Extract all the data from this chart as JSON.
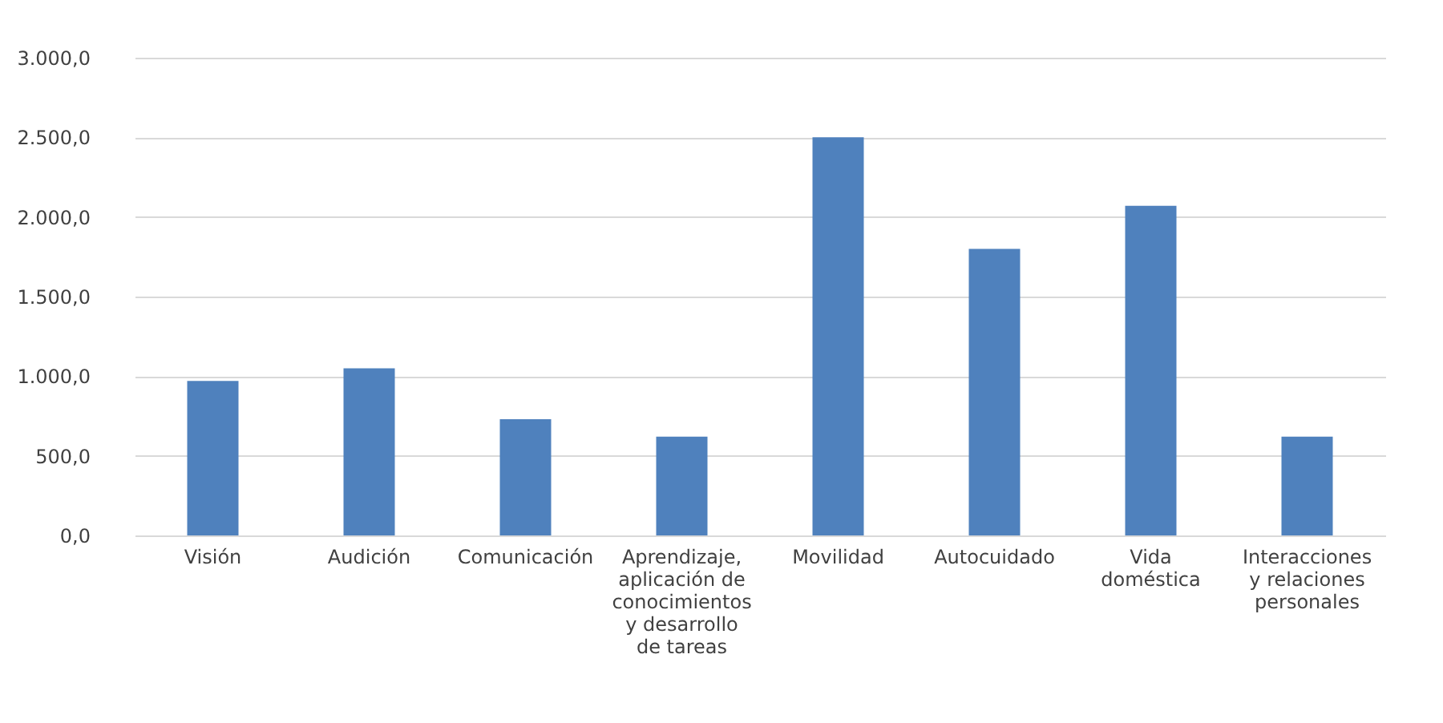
{
  "chart_data": {
    "type": "bar",
    "categories": [
      "Visión",
      "Audición",
      "Comunicación",
      "Aprendizaje, aplicación de conocimientos y desarrollo de tareas",
      "Movilidad",
      "Autocuidado",
      "Vida doméstica",
      "Interacciones y relaciones personales"
    ],
    "values": [
      970,
      1050,
      730,
      620,
      2500,
      1800,
      2070,
      620
    ],
    "color": "#4f81bd",
    "ylim": [
      0,
      3000
    ],
    "yticks": [
      {
        "value": 0,
        "label": "0,0"
      },
      {
        "value": 500,
        "label": "500,0"
      },
      {
        "value": 1000,
        "label": "1.000,0"
      },
      {
        "value": 1500,
        "label": "1.500,0"
      },
      {
        "value": 2000,
        "label": "2.000,0"
      },
      {
        "value": 2500,
        "label": "2.500,0"
      },
      {
        "value": 3000,
        "label": "3.000,0"
      }
    ],
    "grid": "y"
  }
}
